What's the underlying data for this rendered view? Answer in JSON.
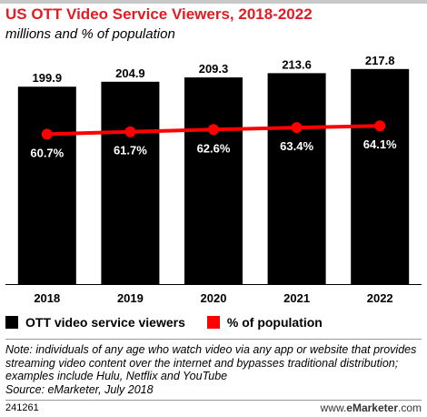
{
  "title": "US OTT Video Service Viewers, 2018-2022",
  "subtitle": "millions and % of population",
  "chart_data": {
    "type": "bar",
    "categories": [
      "2018",
      "2019",
      "2020",
      "2021",
      "2022"
    ],
    "series": [
      {
        "name": "OTT video service viewers",
        "type": "bar",
        "values": [
          199.9,
          204.9,
          209.3,
          213.6,
          217.8
        ],
        "labels": [
          "199.9",
          "204.9",
          "209.3",
          "213.6",
          "217.8"
        ],
        "color": "#000000"
      },
      {
        "name": "% of population",
        "type": "line",
        "values": [
          60.7,
          61.7,
          62.6,
          63.4,
          64.1
        ],
        "labels": [
          "60.7%",
          "61.7%",
          "62.6%",
          "63.4%",
          "64.1%"
        ],
        "color": "#ff0000"
      }
    ],
    "ylim_bar": [
      0,
      225
    ],
    "ylim_line": [
      0,
      90
    ],
    "grid": false,
    "legend": "bottom"
  },
  "legend": {
    "bars": "OTT video service viewers",
    "line": "% of population"
  },
  "note": "Note: individuals of any age who watch video via any app or website that provides streaming video content over the internet and bypasses traditional distribution; examples include Hulu, Netflix and YouTube",
  "source": "Source: eMarketer, July 2018",
  "footer": {
    "id": "241261",
    "logo_prefix": "www.",
    "logo_brand": "eMarketer",
    "logo_suffix": ".com"
  },
  "colors": {
    "title": "#e31b23",
    "bar": "#000000",
    "line": "#ff0000",
    "line_label_bg": "#000000"
  }
}
